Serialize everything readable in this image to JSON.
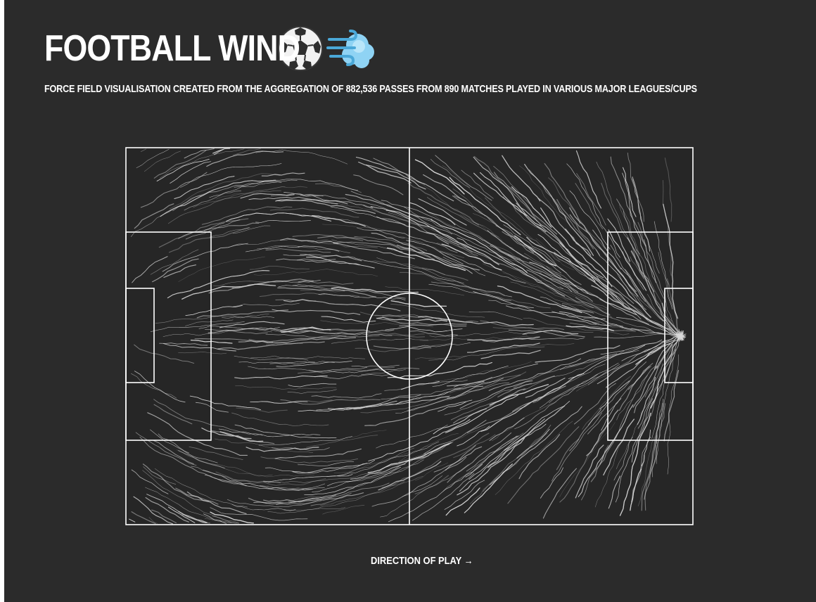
{
  "title": "Football Wind",
  "subtitle": "Force field visualisation created from the aggregation of 882,536 passes from 890 matches played in various major leagues/cups",
  "direction_label": "Direction of play →",
  "icons": [
    "soccer-ball-icon",
    "wind-blowing-icon"
  ],
  "colors": {
    "background": "#2b2b2b",
    "page_margin": "#ffffff",
    "pitch_fill": "#262626",
    "pitch_lines": "#ffffff",
    "streamlines": "#d9d9d9",
    "text": "#ffffff",
    "wind_icon": "#5bc0eb"
  }
}
